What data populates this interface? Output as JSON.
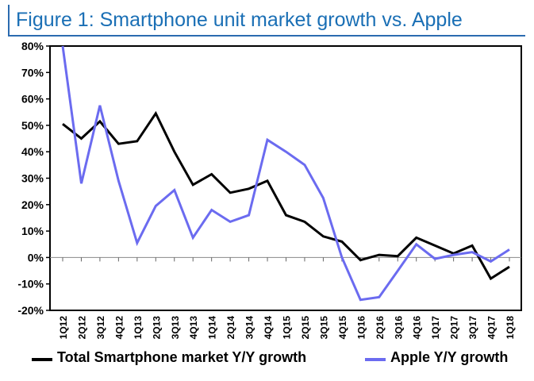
{
  "title": "Figure 1: Smartphone unit market growth vs. Apple",
  "colors": {
    "title": "#1a6fb5",
    "rule": "#2b6bb0",
    "series_total": "#000000",
    "series_apple": "#6b6bf0"
  },
  "chart_data": {
    "type": "line",
    "categories": [
      "1Q12",
      "2Q12",
      "3Q12",
      "4Q12",
      "1Q13",
      "2Q13",
      "3Q13",
      "4Q13",
      "1Q14",
      "2Q14",
      "3Q14",
      "4Q14",
      "1Q15",
      "2Q15",
      "3Q15",
      "4Q15",
      "1Q16",
      "2Q16",
      "3Q16",
      "4Q16",
      "1Q17",
      "2Q17",
      "3Q17",
      "4Q17",
      "1Q18"
    ],
    "ylim": [
      -20,
      80
    ],
    "yticks": [
      "-20%",
      "-10%",
      "0%",
      "10%",
      "20%",
      "30%",
      "40%",
      "50%",
      "60%",
      "70%",
      "80%"
    ],
    "ytick_values": [
      -20,
      -10,
      0,
      10,
      20,
      30,
      40,
      50,
      60,
      70,
      80
    ],
    "grid": false,
    "legend_position": "bottom",
    "series": [
      {
        "name": "Total Smartphone market Y/Y growth",
        "values": [
          50.5,
          45,
          51.5,
          43,
          44,
          54.5,
          40,
          27.5,
          31.5,
          24.5,
          26,
          29,
          16,
          13.5,
          8,
          6,
          -1,
          1,
          0.5,
          7.5,
          4.5,
          1.5,
          4.5,
          -8,
          -3.5
        ]
      },
      {
        "name": "Apple Y/Y growth",
        "values": [
          80,
          28,
          57.5,
          29,
          5.5,
          19.5,
          25.5,
          7.5,
          18,
          13.5,
          16,
          44.5,
          40,
          35,
          22.5,
          0,
          -16,
          -15,
          -5,
          5,
          -0.5,
          1,
          2,
          -1.5,
          3
        ]
      }
    ]
  }
}
